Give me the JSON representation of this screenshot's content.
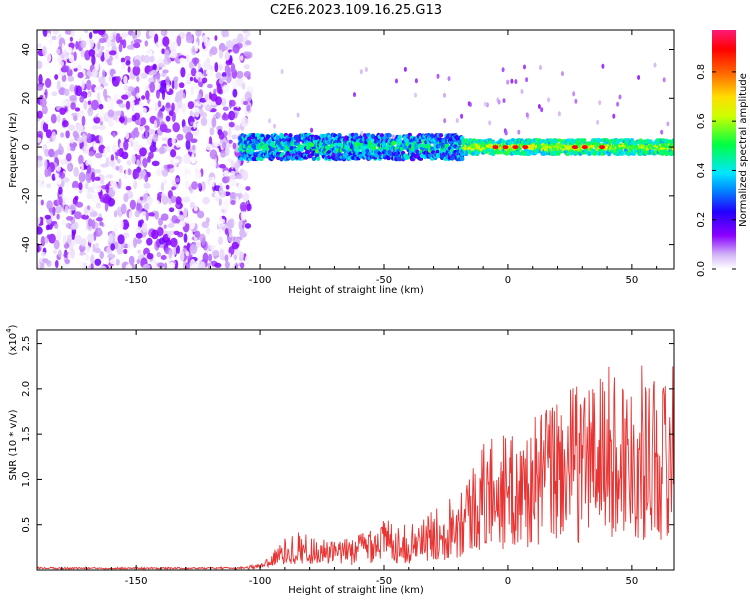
{
  "title": "C2E6.2023.109.16.25.G13",
  "chart_data": [
    {
      "type": "heatmap",
      "xlabel": "Height of straight line (km)",
      "ylabel": "Frequency (Hz)",
      "xlim": [
        -190,
        67
      ],
      "ylim": [
        -50,
        48
      ],
      "xticks": [
        -150,
        -100,
        -50,
        0,
        50
      ],
      "yticks": [
        -40,
        -20,
        0,
        20,
        40
      ],
      "colorbar": {
        "label": "Normalized spectral amplitude",
        "range": [
          0,
          0.97
        ],
        "ticks": [
          "0.0",
          "0.2",
          "0.4",
          "0.6",
          "0.8"
        ],
        "colormap": [
          "#ffffff",
          "#c7a0f3",
          "#8a00ff",
          "#2200ff",
          "#0088ff",
          "#00e5ff",
          "#00ff44",
          "#ccff00",
          "#ffdd00",
          "#ff6600",
          "#ff0000",
          "#ff1a77"
        ]
      },
      "regions": [
        {
          "x_range": [
            -190,
            -108
          ],
          "freq_range": [
            -50,
            48
          ],
          "amplitude": "low (0.0-0.2) noise"
        },
        {
          "x_range": [
            -108,
            -18
          ],
          "freq_center": 0,
          "freq_halfwidth": 5,
          "amplitude": "0.2-0.6"
        },
        {
          "x_range": [
            -18,
            67
          ],
          "freq_center": 0,
          "freq_halfwidth": 3,
          "amplitude": "0.4-0.95"
        }
      ],
      "grid": false
    },
    {
      "type": "line",
      "xlabel": "Height of straight line (km)",
      "ylabel": "SNR (10 * v/v)",
      "y_multiplier": "(x10",
      "y_multiplier_exp": "4",
      "xlim": [
        -190,
        67
      ],
      "ylim": [
        0,
        2.65
      ],
      "xticks": [
        -150,
        -100,
        -50,
        0,
        50
      ],
      "yticks": [
        "0.5",
        "1.0",
        "1.5",
        "2.0",
        "2.5"
      ],
      "color": "#e83333",
      "series": [
        {
          "x": [
            -190,
            -150,
            -110,
            -100,
            -95,
            -90,
            -85,
            -80,
            -75,
            -70,
            -65,
            -60,
            -55,
            -50,
            -45,
            -40,
            -35,
            -30,
            -25,
            -20,
            -15,
            -10,
            -5,
            0,
            5,
            10,
            15,
            20,
            25,
            30,
            35,
            40,
            45,
            50,
            55,
            60,
            65,
            67
          ],
          "y": [
            0.02,
            0.02,
            0.02,
            0.04,
            0.12,
            0.2,
            0.25,
            0.22,
            0.2,
            0.18,
            0.2,
            0.24,
            0.3,
            0.33,
            0.3,
            0.28,
            0.32,
            0.38,
            0.45,
            0.55,
            0.65,
            0.8,
            0.9,
            0.85,
            0.85,
            0.95,
            1.05,
            1.1,
            1.15,
            1.2,
            1.25,
            1.3,
            1.25,
            1.25,
            1.3,
            1.25,
            1.2,
            1.4
          ]
        }
      ],
      "grid": false
    }
  ]
}
